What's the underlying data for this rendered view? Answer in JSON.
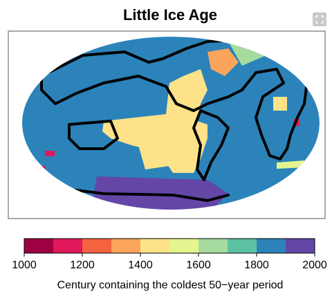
{
  "title": "Little Ice Age",
  "colorbar": {
    "bins": [
      1000,
      1100,
      1200,
      1300,
      1400,
      1500,
      1600,
      1700,
      1800,
      1900,
      2000
    ],
    "colors": [
      "#9e0142",
      "#e0185a",
      "#f4633f",
      "#fba55c",
      "#fde28a",
      "#e4f48f",
      "#a6dba0",
      "#5cc2a3",
      "#2b83ba",
      "#6446a6"
    ],
    "ticks": [
      1000,
      1200,
      1400,
      1600,
      1800,
      2000
    ],
    "label": "Century containing the coldest 50−year period"
  }
}
